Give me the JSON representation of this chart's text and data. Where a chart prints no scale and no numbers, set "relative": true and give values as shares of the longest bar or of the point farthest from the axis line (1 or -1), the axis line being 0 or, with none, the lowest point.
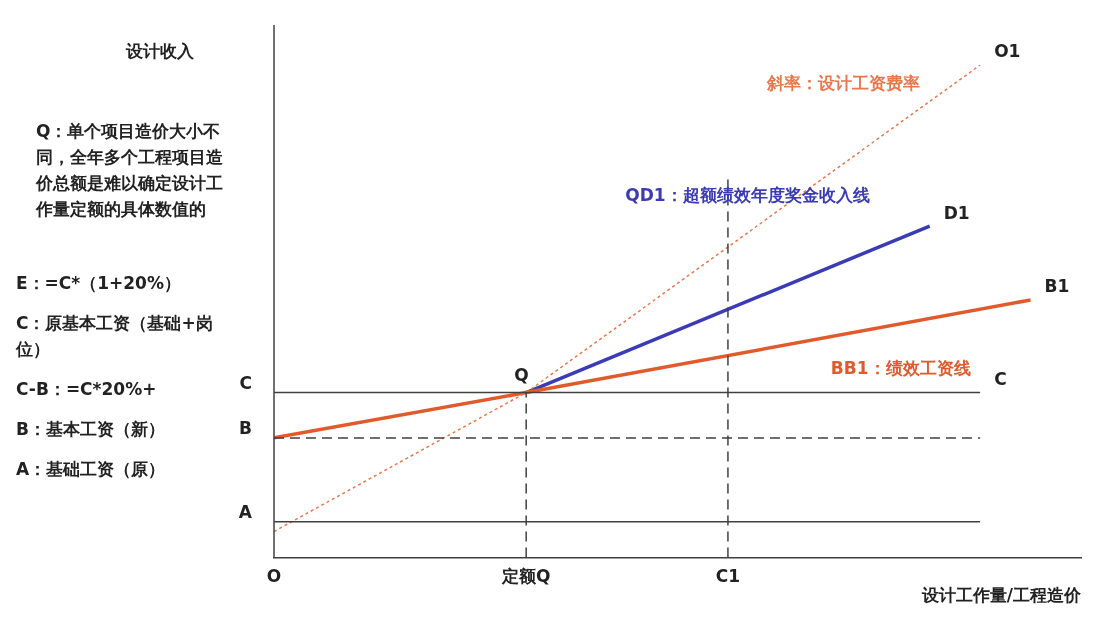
{
  "chart_data": {
    "type": "line",
    "relative": true,
    "ylabel": "设计收入",
    "xlabel": "设计工作量/工程造价",
    "grid": false,
    "legend": false,
    "marker": "none",
    "categories": [
      "O",
      null,
      null,
      null,
      null,
      "定额Q",
      null,
      null,
      null,
      "C1",
      null,
      null,
      null,
      null,
      null,
      null,
      null
    ],
    "series": [
      {
        "color": "#404040",
        "values": [
          0.335,
          null,
          null,
          null,
          null,
          null,
          null,
          null,
          null,
          null,
          null,
          null,
          null,
          null,
          0.335,
          null,
          null
        ],
        "line_style": "solid"
      },
      {
        "color": "#404040",
        "values": [
          0.243,
          null,
          null,
          null,
          null,
          null,
          null,
          null,
          null,
          null,
          null,
          null,
          null,
          null,
          0.243,
          null,
          null
        ],
        "line_style": "dashed"
      },
      {
        "color": "#404040",
        "values": [
          0.073,
          null,
          null,
          null,
          null,
          null,
          null,
          null,
          null,
          null,
          null,
          null,
          null,
          null,
          0.073,
          null,
          null
        ],
        "line_style": "solid"
      },
      {
        "color": "#404040",
        "x": [
          "定额Q",
          "定额Q"
        ],
        "values": [
          0,
          0.335
        ],
        "line_style": "dashed"
      },
      {
        "color": "#404040",
        "x": [
          "C1",
          "C1"
        ],
        "values": [
          0,
          0.773
        ],
        "line_style": "dashed"
      },
      {
        "name": "斜率：设计工资费率",
        "color": "#e8784c",
        "values": [
          0.053,
          null,
          null,
          null,
          null,
          0.335,
          null,
          null,
          null,
          null,
          null,
          null,
          null,
          null,
          1,
          null,
          null
        ],
        "line_style": "dotted"
      },
      {
        "name": "BB1：绩效工资线",
        "color": "#e05a2b",
        "values": [
          0.243,
          null,
          null,
          null,
          null,
          0.335,
          null,
          null,
          null,
          null,
          null,
          null,
          null,
          null,
          null,
          0.523,
          null
        ],
        "line_style": "solid"
      },
      {
        "name": "QD1：超额绩效年度奖金收入线",
        "color": "#3b3bb5",
        "values": [
          null,
          null,
          null,
          null,
          null,
          0.335,
          null,
          null,
          null,
          null,
          null,
          null,
          null,
          0.673,
          null,
          null,
          null
        ],
        "line_style": "solid"
      }
    ],
    "annotations": [
      "Q：单个项目造价大小不同，全年多个工程项目造价总额是难以确定设计工作量定额的具体数值的",
      "E：=C*（1+20%）",
      "C：原基本工资（基础+岗位）",
      "C-B：=C*20%+",
      "B：基本工资（新）",
      "A：基础工资（原）",
      "C",
      "B1",
      "D1",
      "O1",
      {
        "text": "C",
        "x": "O",
        "y": 0.335
      },
      {
        "text": "B",
        "x": "O",
        "y": 0.243
      },
      {
        "text": "A",
        "x": "O",
        "y": 0.073
      },
      {
        "text": "Q",
        "x": "定额Q",
        "y": 0.335
      }
    ]
  }
}
